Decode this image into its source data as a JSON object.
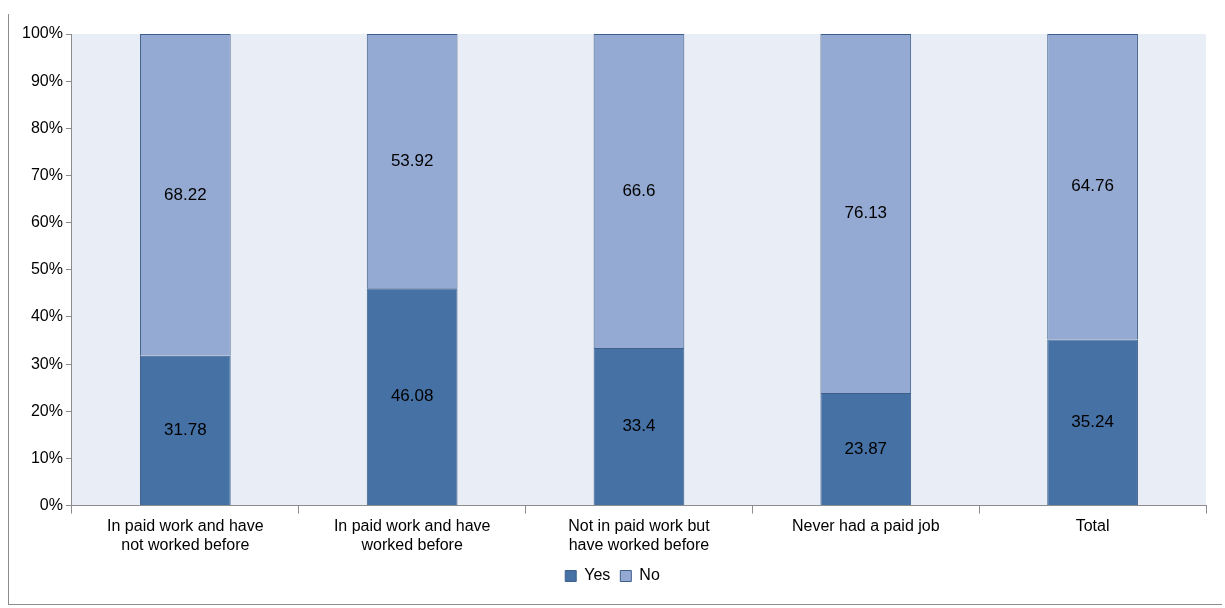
{
  "chart_data": {
    "type": "bar",
    "stacked": true,
    "categories": [
      "In paid work and have not worked before",
      "In paid work and have worked before",
      "Not in paid work but have worked before",
      "Never had a paid job",
      "Total"
    ],
    "series": [
      {
        "name": "Yes",
        "color": "#4571a5",
        "values": [
          31.78,
          46.08,
          33.4,
          23.87,
          35.24
        ]
      },
      {
        "name": "No",
        "color": "#94aad2",
        "values": [
          68.22,
          53.92,
          66.6,
          76.13,
          64.76
        ]
      }
    ],
    "ylim": [
      0,
      100
    ],
    "yticks": [
      {
        "value": 0,
        "label": "0%"
      },
      {
        "value": 10,
        "label": "10%"
      },
      {
        "value": 20,
        "label": "20%"
      },
      {
        "value": 30,
        "label": "30%"
      },
      {
        "value": 40,
        "label": "40%"
      },
      {
        "value": 50,
        "label": "50%"
      },
      {
        "value": 60,
        "label": "60%"
      },
      {
        "value": 70,
        "label": "70%"
      },
      {
        "value": 80,
        "label": "80%"
      },
      {
        "value": 90,
        "label": "90%"
      },
      {
        "value": 100,
        "label": "100%"
      }
    ],
    "data_labels": true,
    "grid": false,
    "legend": "bottom"
  }
}
